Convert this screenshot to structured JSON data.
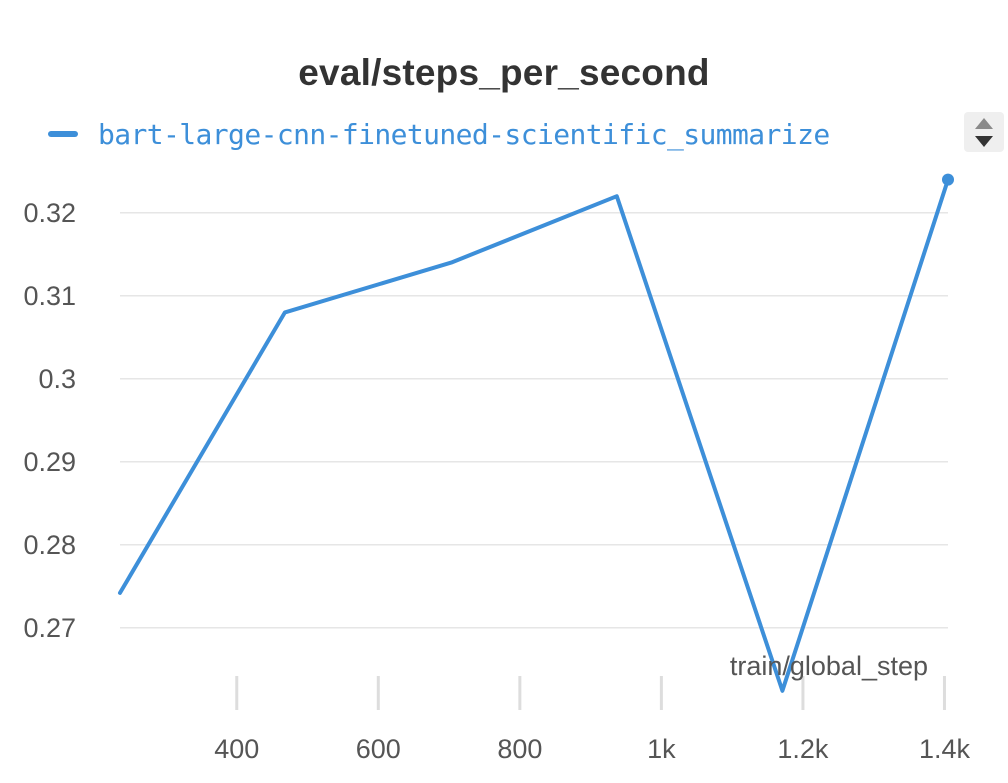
{
  "chart_data": {
    "type": "line",
    "title": "eval/steps_per_second",
    "xlabel": "train/global_step",
    "ylabel": "",
    "xlim": [
      235,
      1405
    ],
    "ylim": [
      0.2625,
      0.326
    ],
    "x_ticks": [
      {
        "value": 400,
        "label": "400"
      },
      {
        "value": 600,
        "label": "600"
      },
      {
        "value": 800,
        "label": "800"
      },
      {
        "value": 1000,
        "label": "1k"
      },
      {
        "value": 1200,
        "label": "1.2k"
      },
      {
        "value": 1400,
        "label": "1.4k"
      }
    ],
    "y_ticks": [
      {
        "value": 0.27,
        "label": "0.27"
      },
      {
        "value": 0.28,
        "label": "0.28"
      },
      {
        "value": 0.29,
        "label": "0.29"
      },
      {
        "value": 0.3,
        "label": "0.3"
      },
      {
        "value": 0.31,
        "label": "0.31"
      },
      {
        "value": 0.32,
        "label": "0.32"
      }
    ],
    "grid": "horizontal",
    "legend_position": "top-left",
    "series": [
      {
        "name": "bart-large-cnn-finetuned-scientific_summarize",
        "color": "#3d8fd9",
        "x": [
          235,
          468,
          703,
          937,
          1171,
          1405
        ],
        "y": [
          0.2742,
          0.308,
          0.314,
          0.322,
          0.2624,
          0.324
        ]
      }
    ]
  },
  "legend_control": {
    "icon": "up-down-arrows-icon"
  }
}
